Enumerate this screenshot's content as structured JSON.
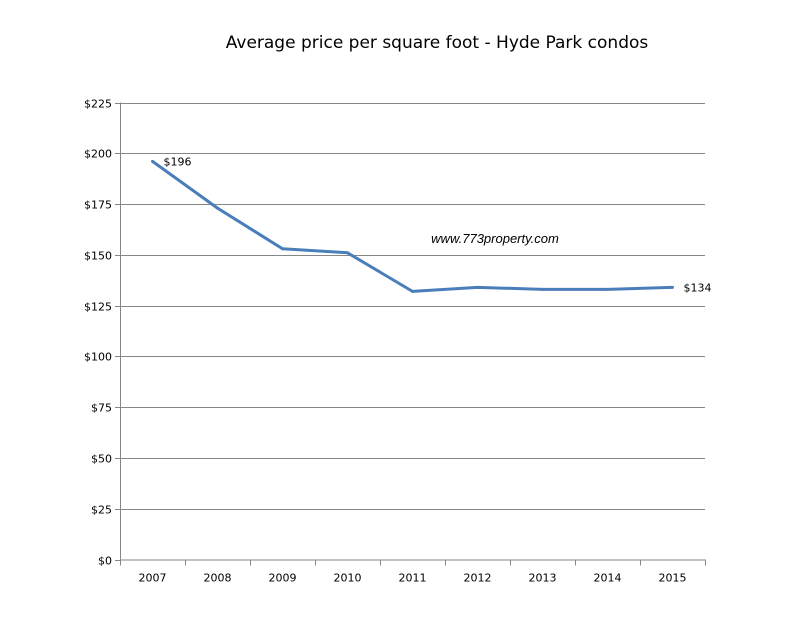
{
  "chart_data": {
    "type": "line",
    "title": "Average price per square foot - Hyde Park condos",
    "watermark": "www.773property.com",
    "xlabel": "",
    "ylabel": "",
    "categories": [
      "2007",
      "2008",
      "2009",
      "2010",
      "2011",
      "2012",
      "2013",
      "2014",
      "2015"
    ],
    "values": [
      196,
      173,
      153,
      151,
      132,
      134,
      133,
      133,
      134
    ],
    "data_labels": [
      {
        "index": 0,
        "text": "$196"
      },
      {
        "index": 8,
        "text": "$134"
      }
    ],
    "ylim": [
      0,
      225
    ],
    "yticks": [
      0,
      25,
      50,
      75,
      100,
      125,
      150,
      175,
      200,
      225
    ],
    "ytick_labels": [
      "$0",
      "$25",
      "$50",
      "$75",
      "$100",
      "$125",
      "$150",
      "$175",
      "$200",
      "$225"
    ],
    "grid": true,
    "legend": "none",
    "line_color": "#4a7ebb",
    "grid_color": "#868686"
  }
}
